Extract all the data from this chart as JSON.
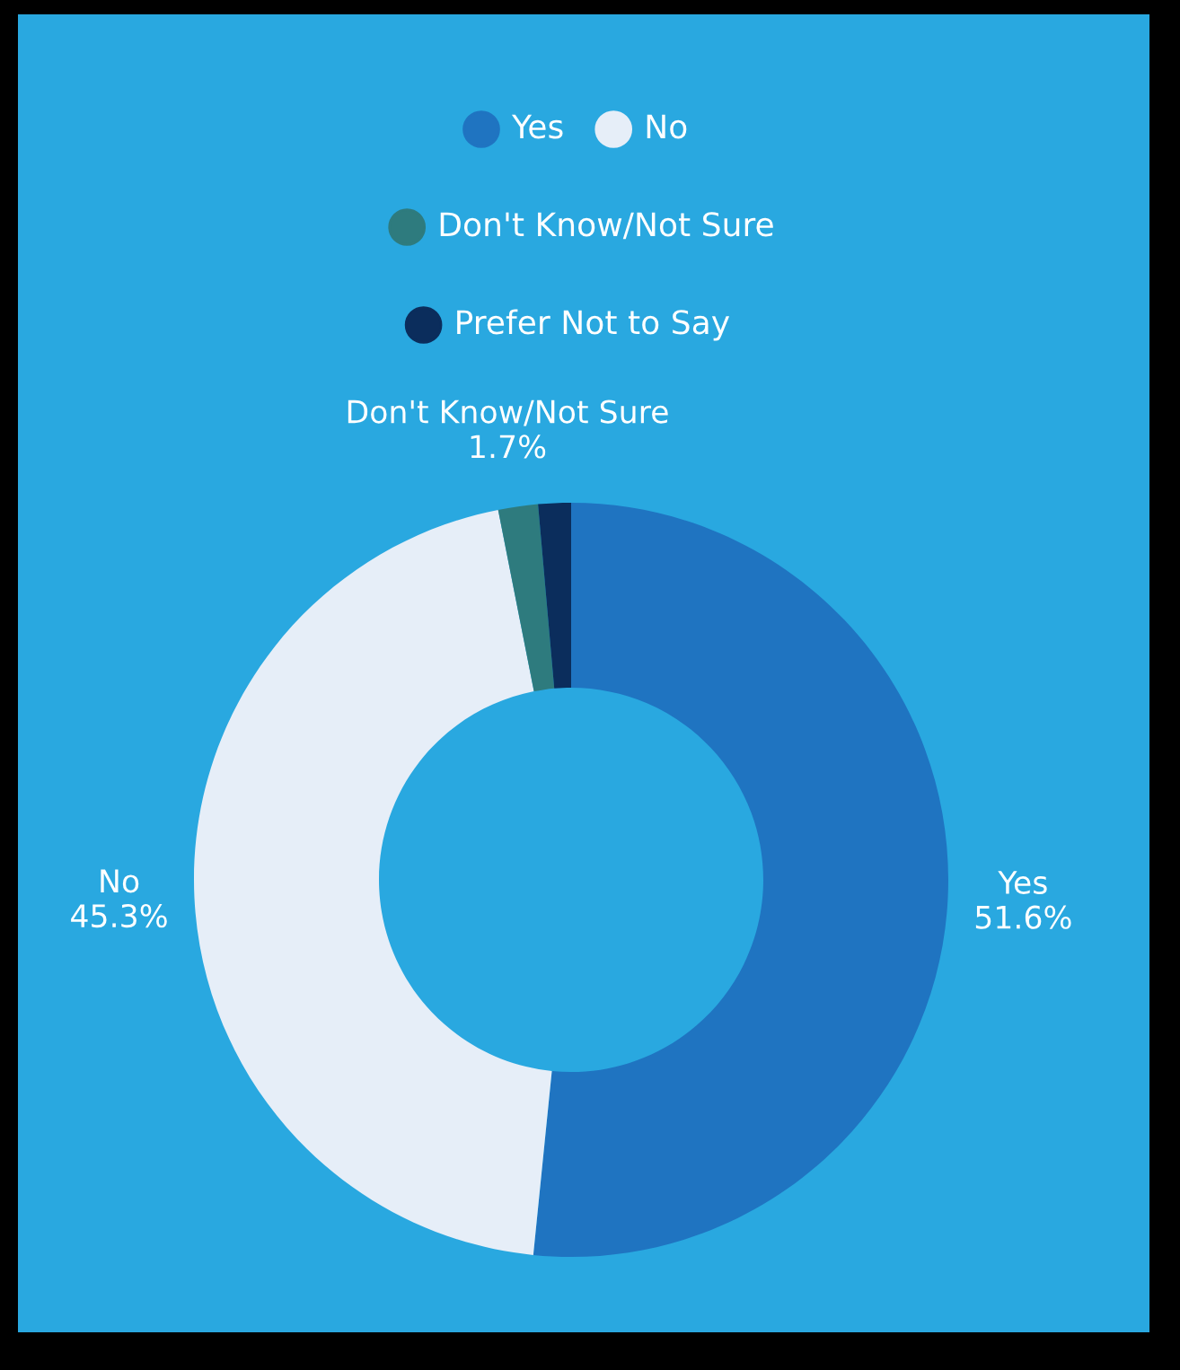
{
  "chart_data": {
    "type": "donut",
    "categories": [
      "Yes",
      "No",
      "Don't Know/Not Sure",
      "Prefer Not to Say"
    ],
    "values": [
      51.6,
      45.3,
      1.7,
      1.4
    ],
    "colors": [
      "#1f74c1",
      "#e6eef8",
      "#2e7b7e",
      "#0b2d5c"
    ],
    "value_labels": [
      "51.6%",
      "45.3%",
      "1.7%",
      null
    ],
    "legend": "top"
  }
}
